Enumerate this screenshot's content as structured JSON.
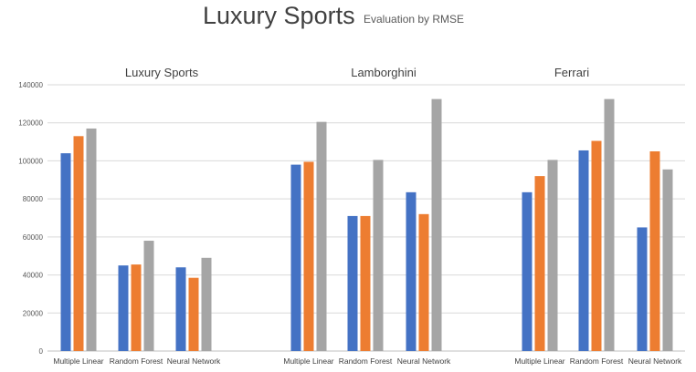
{
  "header": {
    "title": "Luxury Sports",
    "subtitle": "Evaluation by RMSE"
  },
  "chart_data": {
    "type": "bar",
    "title": "Luxury Sports",
    "subtitle": "Evaluation by RMSE",
    "ylim": [
      0,
      140000
    ],
    "yticks": [
      0,
      20000,
      40000,
      60000,
      80000,
      100000,
      120000,
      140000
    ],
    "grid": true,
    "colors": [
      "#4472c4",
      "#ed7d31",
      "#a5a5a5"
    ],
    "panels": [
      {
        "title": "Luxury Sports",
        "categories": [
          "Multiple Linear",
          "Random Forest",
          "Neural Network"
        ],
        "series": [
          {
            "values": [
              104000,
              45000,
              44000
            ]
          },
          {
            "values": [
              113000,
              45500,
              38500
            ]
          },
          {
            "values": [
              117000,
              58000,
              49000
            ]
          }
        ]
      },
      {
        "title": "Lamborghini",
        "categories": [
          "Multiple Linear",
          "Random Forest",
          "Neural Network"
        ],
        "series": [
          {
            "values": [
              98000,
              71000,
              83500
            ]
          },
          {
            "values": [
              99500,
              71000,
              72000
            ]
          },
          {
            "values": [
              120500,
              100500,
              132500
            ]
          }
        ]
      },
      {
        "title": "Ferrari",
        "categories": [
          "Multiple Linear",
          "Random Forest",
          "Neural Network"
        ],
        "series": [
          {
            "values": [
              83500,
              105500,
              65000
            ]
          },
          {
            "values": [
              92000,
              110500,
              105000
            ]
          },
          {
            "values": [
              100500,
              132500,
              95500
            ]
          }
        ]
      }
    ]
  }
}
